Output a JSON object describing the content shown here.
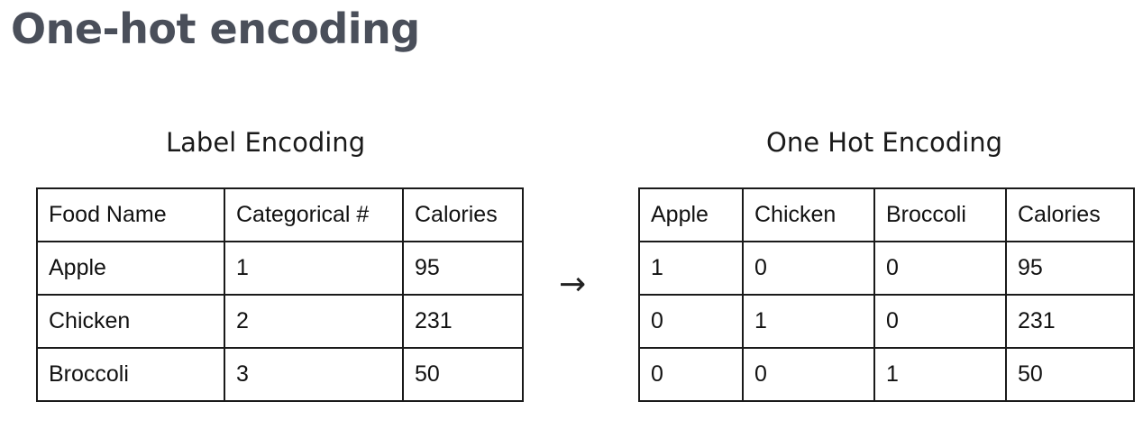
{
  "title": "One-hot encoding",
  "arrow_glyph": "→",
  "label_encoding": {
    "heading": "Label Encoding",
    "headers": [
      "Food Name",
      "Categorical #",
      "Calories"
    ],
    "rows": [
      [
        "Apple",
        "1",
        "95"
      ],
      [
        "Chicken",
        "2",
        "231"
      ],
      [
        "Broccoli",
        "3",
        "50"
      ]
    ]
  },
  "one_hot_encoding": {
    "heading": "One Hot Encoding",
    "headers": [
      "Apple",
      "Chicken",
      "Broccoli",
      "Calories"
    ],
    "rows": [
      [
        "1",
        "0",
        "0",
        "95"
      ],
      [
        "0",
        "1",
        "0",
        "231"
      ],
      [
        "0",
        "0",
        "1",
        "50"
      ]
    ]
  }
}
